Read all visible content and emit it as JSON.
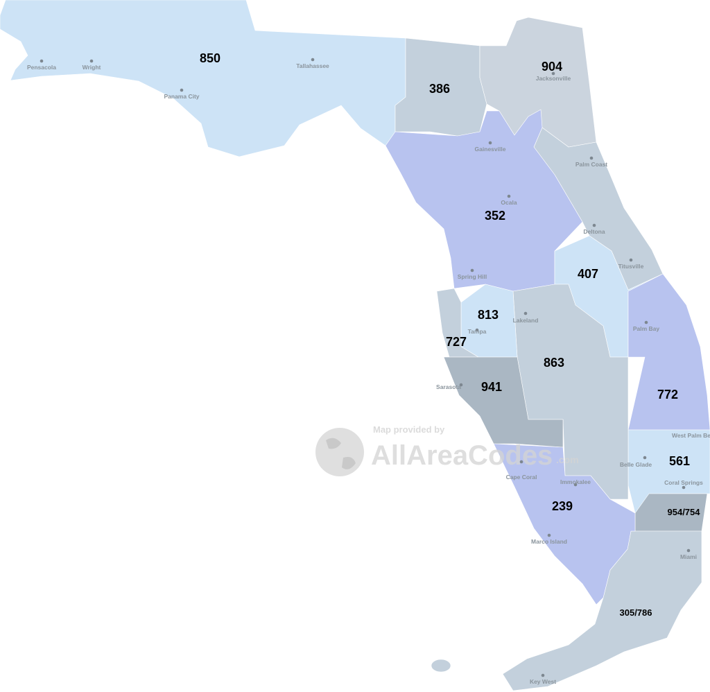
{
  "map": {
    "area_codes": [
      {
        "code": "850",
        "color": "#cde3f6"
      },
      {
        "code": "386",
        "color": "#c3d0dc"
      },
      {
        "code": "904",
        "color": "#cbd4de"
      },
      {
        "code": "352",
        "color": "#b8c3ef"
      },
      {
        "code": "407",
        "color": "#cde3f6"
      },
      {
        "code": "813",
        "color": "#cde3f6"
      },
      {
        "code": "727",
        "color": "#c3d0dc"
      },
      {
        "code": "863",
        "color": "#c3d0dc"
      },
      {
        "code": "941",
        "color": "#aab7c3"
      },
      {
        "code": "772",
        "color": "#b8c3ef"
      },
      {
        "code": "561",
        "color": "#cde3f6"
      },
      {
        "code": "954/754",
        "color": "#aab7c3"
      },
      {
        "code": "239",
        "color": "#b8c3ef"
      },
      {
        "code": "305/786",
        "color": "#c3d0dc"
      }
    ],
    "cities": [
      "Pensacola",
      "Wright",
      "Panama City",
      "Tallahassee",
      "Jacksonville",
      "Gainesville",
      "Palm Coast",
      "Ocala",
      "Deltona",
      "Titusville",
      "Spring Hill",
      "Tampa",
      "Lakeland",
      "Palm Bay",
      "Sarasota",
      "Cape Coral",
      "West Palm Be",
      "Belle Glade",
      "Immokalee",
      "Coral Springs",
      "Marco Island",
      "Miami",
      "Key West"
    ],
    "watermark": {
      "line1": "Map provided by",
      "brand": "AllAreaCodes",
      "suffix": ".com"
    }
  }
}
